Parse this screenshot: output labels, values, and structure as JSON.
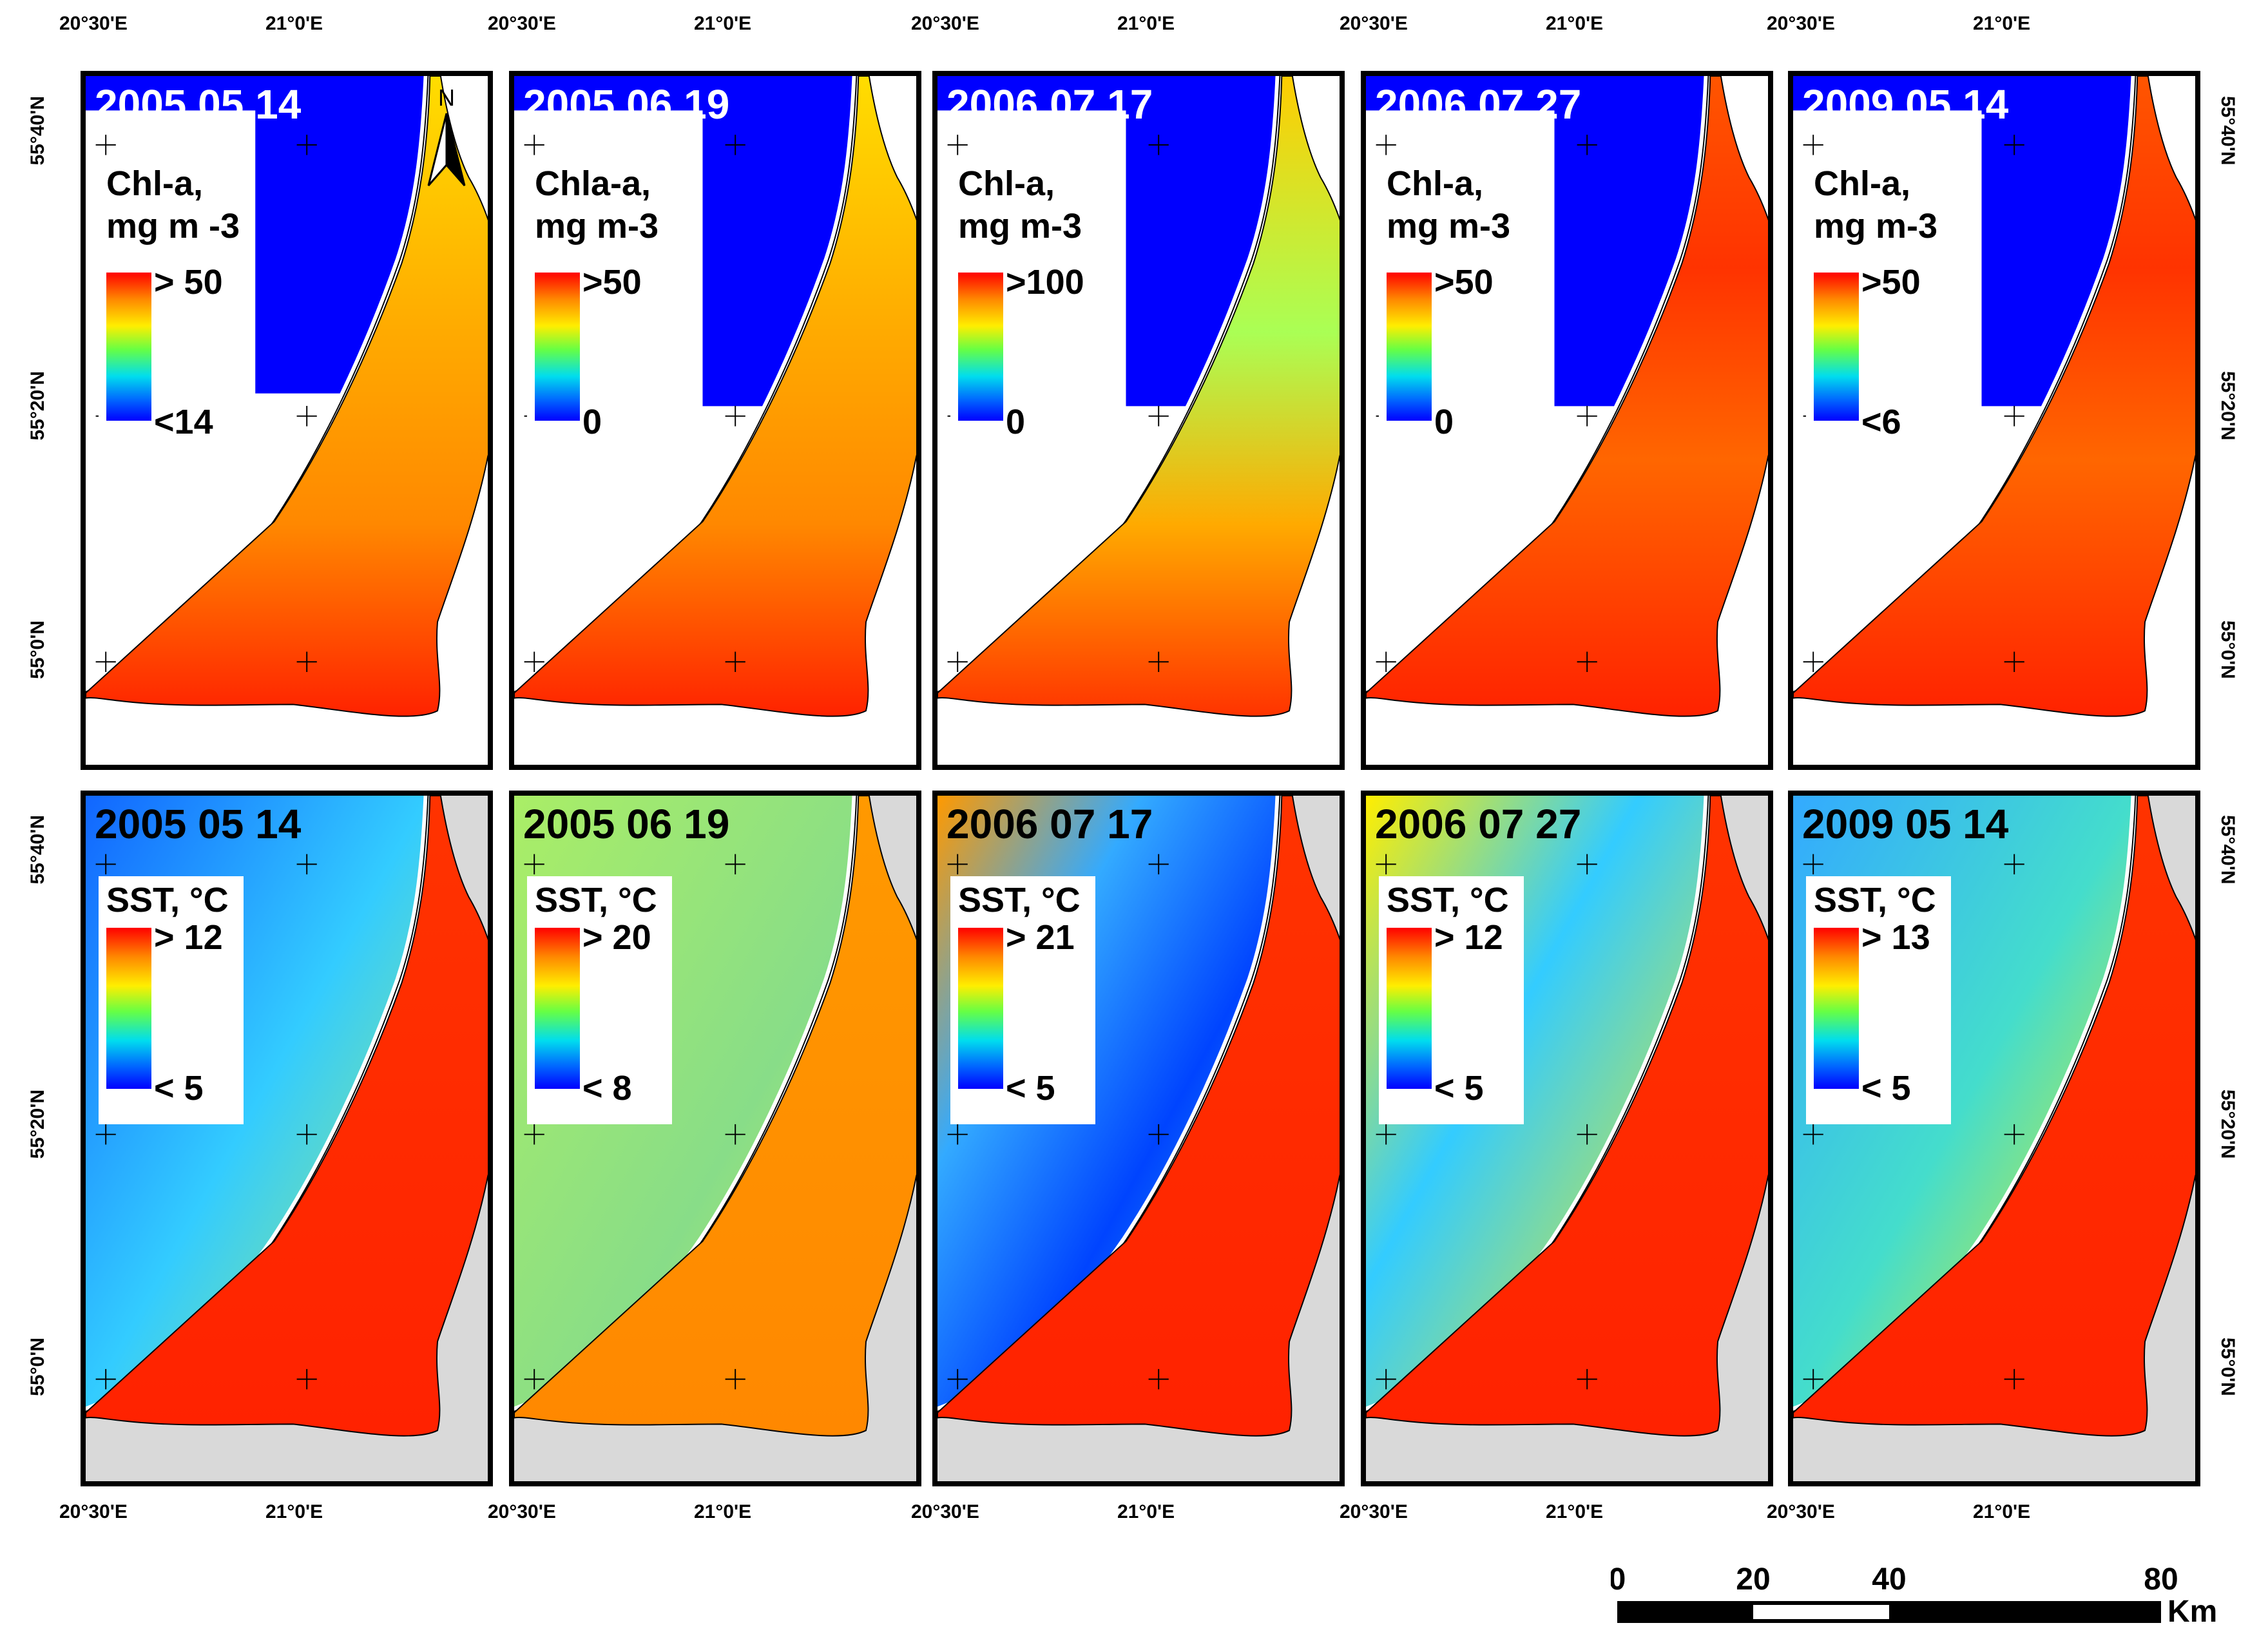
{
  "axes": {
    "lon_labels": [
      "20°30'E",
      "21°0'E"
    ],
    "lat_labels": [
      "55°40'N",
      "55°20'N",
      "55°0'N"
    ]
  },
  "rows": [
    {
      "variable": "Chl-a",
      "panels": [
        {
          "date": "2005 05 14",
          "legend_title": "Chl-a,\nmg m -3",
          "legend_max": "> 50",
          "legend_min": "<14",
          "north_arrow": "N"
        },
        {
          "date": "2005 06 19",
          "legend_title": "Chla-a,\nmg m-3",
          "legend_max": ">50",
          "legend_min": "0"
        },
        {
          "date": "2006 07 17",
          "legend_title": "Chl-a,\nmg m-3",
          "legend_max": ">100",
          "legend_min": "0"
        },
        {
          "date": "2006 07 27",
          "legend_title": "Chl-a,\nmg m-3",
          "legend_max": ">50",
          "legend_min": "0"
        },
        {
          "date": "2009 05 14",
          "legend_title": "Chl-a,\nmg m-3",
          "legend_max": ">50",
          "legend_min": "<6"
        }
      ]
    },
    {
      "variable": "SST",
      "panels": [
        {
          "date": "2005 05 14",
          "legend_title": "SST, °C",
          "legend_max": "> 12",
          "legend_min": "< 5"
        },
        {
          "date": "2005 06 19",
          "legend_title": "SST, °C",
          "legend_max": "> 20",
          "legend_min": "< 8"
        },
        {
          "date": "2006 07 17",
          "legend_title": "SST, °C",
          "legend_max": "> 21",
          "legend_min": "< 5"
        },
        {
          "date": "2006 07 27",
          "legend_title": "SST, °C",
          "legend_max": "> 12",
          "legend_min": "< 5"
        },
        {
          "date": "2009 05 14",
          "legend_title": "SST, °C",
          "legend_max": "> 13",
          "legend_min": "< 5"
        }
      ]
    }
  ],
  "scale_bar": {
    "labels": [
      "0",
      "20",
      "40",
      "80"
    ],
    "unit": "Km"
  },
  "colors": {
    "chl_open_sea": "#0000ff",
    "land": "#d9d9d9",
    "high": "#ff2200",
    "mid": "#ffdd00",
    "low": "#00c8ff"
  }
}
